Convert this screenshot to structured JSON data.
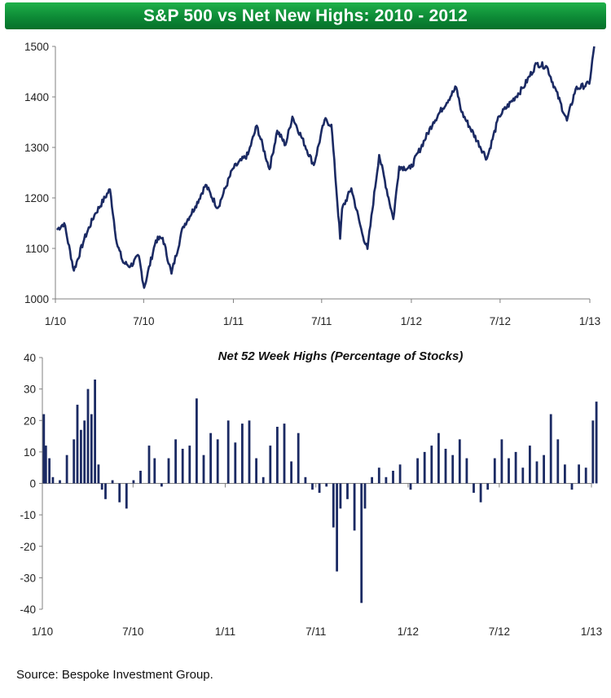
{
  "title": "S&P 500 vs Net New Highs: 2010 - 2012",
  "source": "Source:  Bespoke Investment Group.",
  "colors": {
    "banner": "#12a043",
    "series": "#1b2a63",
    "axis": "#808080"
  },
  "chart_data": [
    {
      "type": "line",
      "title": "",
      "x_tick_labels": [
        "1/10",
        "7/10",
        "1/11",
        "7/11",
        "1/12",
        "7/12",
        "1/13"
      ],
      "y_ticks": [
        1000,
        1100,
        1200,
        1300,
        1400,
        1500
      ],
      "ylim": [
        1000,
        1500
      ],
      "grid": false,
      "series": [
        {
          "x": [
            "2010-01-04",
            "2010-01-19",
            "2010-02-08",
            "2010-03-01",
            "2010-03-22",
            "2010-04-23",
            "2010-05-07",
            "2010-05-20",
            "2010-06-04",
            "2010-06-21",
            "2010-07-02",
            "2010-07-26",
            "2010-08-09",
            "2010-08-27",
            "2010-09-20",
            "2010-10-15",
            "2010-11-05",
            "2010-11-30",
            "2010-12-31",
            "2011-01-31",
            "2011-02-18",
            "2011-03-16",
            "2011-04-01",
            "2011-04-18",
            "2011-05-02",
            "2011-06-15",
            "2011-07-07",
            "2011-07-21",
            "2011-08-08",
            "2011-08-12",
            "2011-08-31",
            "2011-09-22",
            "2011-10-03",
            "2011-10-27",
            "2011-11-25",
            "2011-12-07",
            "2011-12-30",
            "2012-02-15",
            "2012-04-02",
            "2012-04-13",
            "2012-06-04",
            "2012-06-29",
            "2012-08-17",
            "2012-09-14",
            "2012-10-05",
            "2012-11-15",
            "2012-12-03",
            "2012-12-31",
            "2013-01-10"
          ],
          "values": [
            1137,
            1150,
            1056,
            1118,
            1166,
            1217,
            1110,
            1072,
            1065,
            1085,
            1022,
            1116,
            1121,
            1050,
            1143,
            1183,
            1226,
            1180,
            1258,
            1286,
            1343,
            1257,
            1333,
            1305,
            1361,
            1265,
            1354,
            1345,
            1119,
            1178,
            1219,
            1130,
            1099,
            1285,
            1158,
            1262,
            1258,
            1350,
            1419,
            1370,
            1278,
            1362,
            1418,
            1466,
            1460,
            1353,
            1416,
            1426,
            1500
          ]
        }
      ]
    },
    {
      "type": "bar",
      "title": "Net 52 Week Highs (Percentage of Stocks)",
      "x_tick_labels": [
        "1/10",
        "7/10",
        "1/11",
        "7/11",
        "1/12",
        "7/12",
        "1/13"
      ],
      "y_ticks": [
        -40,
        -30,
        -20,
        -10,
        0,
        10,
        20,
        30,
        40
      ],
      "ylim": [
        -40,
        40
      ],
      "grid": false,
      "series": [
        {
          "x": [
            "2010-01-04",
            "2010-01-08",
            "2010-01-15",
            "2010-01-22",
            "2010-02-05",
            "2010-02-19",
            "2010-03-05",
            "2010-03-12",
            "2010-03-19",
            "2010-03-26",
            "2010-04-02",
            "2010-04-09",
            "2010-04-16",
            "2010-04-23",
            "2010-04-30",
            "2010-05-07",
            "2010-05-21",
            "2010-06-04",
            "2010-06-18",
            "2010-07-02",
            "2010-07-16",
            "2010-08-02",
            "2010-08-13",
            "2010-08-27",
            "2010-09-10",
            "2010-09-24",
            "2010-10-08",
            "2010-10-22",
            "2010-11-05",
            "2010-11-19",
            "2010-12-03",
            "2010-12-17",
            "2011-01-07",
            "2011-01-21",
            "2011-02-04",
            "2011-02-18",
            "2011-03-04",
            "2011-03-18",
            "2011-04-01",
            "2011-04-15",
            "2011-04-29",
            "2011-05-13",
            "2011-05-27",
            "2011-06-10",
            "2011-06-24",
            "2011-07-08",
            "2011-07-22",
            "2011-08-05",
            "2011-08-12",
            "2011-08-19",
            "2011-09-02",
            "2011-09-16",
            "2011-09-30",
            "2011-10-07",
            "2011-10-21",
            "2011-11-04",
            "2011-11-18",
            "2011-12-02",
            "2011-12-16",
            "2012-01-06",
            "2012-01-20",
            "2012-02-03",
            "2012-02-17",
            "2012-03-02",
            "2012-03-16",
            "2012-03-30",
            "2012-04-13",
            "2012-04-27",
            "2012-05-11",
            "2012-05-25",
            "2012-06-08",
            "2012-06-22",
            "2012-07-06",
            "2012-07-20",
            "2012-08-03",
            "2012-08-17",
            "2012-08-31",
            "2012-09-14",
            "2012-09-28",
            "2012-10-12",
            "2012-10-26",
            "2012-11-09",
            "2012-11-23",
            "2012-12-07",
            "2012-12-21",
            "2013-01-04",
            "2013-01-11"
          ],
          "values": [
            22,
            12,
            8,
            2,
            1,
            9,
            14,
            25,
            17,
            20,
            30,
            22,
            33,
            6,
            -2,
            -5,
            1,
            -6,
            -8,
            1,
            4,
            12,
            8,
            -1,
            8,
            14,
            11,
            12,
            27,
            9,
            16,
            14,
            20,
            13,
            19,
            20,
            8,
            2,
            12,
            18,
            19,
            7,
            16,
            2,
            -2,
            -3,
            -1,
            -14,
            -28,
            -8,
            -5,
            -15,
            -38,
            -8,
            2,
            5,
            2,
            4,
            6,
            -2,
            8,
            10,
            12,
            16,
            11,
            9,
            14,
            8,
            -3,
            -6,
            -2,
            8,
            14,
            8,
            10,
            5,
            12,
            7,
            9,
            22,
            14,
            6,
            -2,
            6,
            5,
            20,
            26
          ]
        }
      ]
    }
  ]
}
